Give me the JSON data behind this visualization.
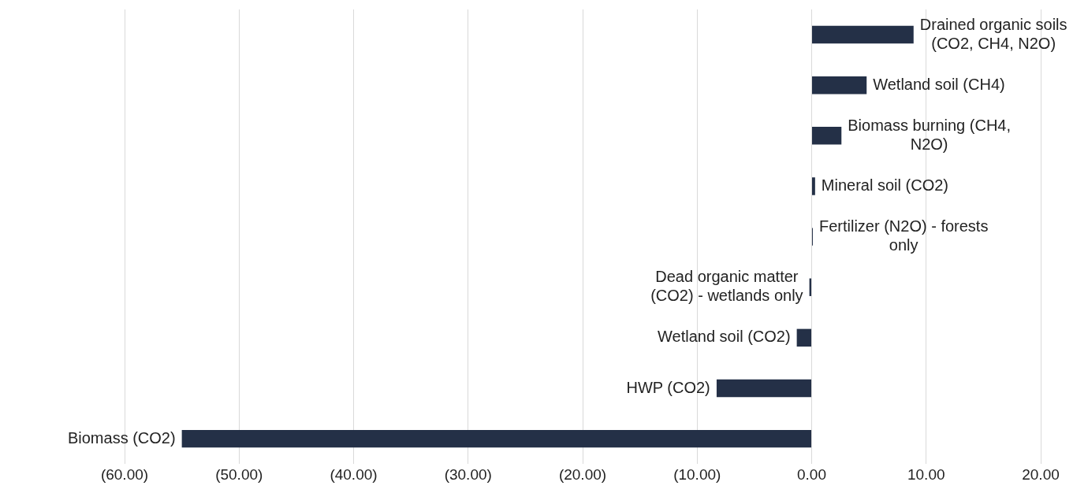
{
  "chart_data": {
    "type": "bar",
    "orientation": "horizontal",
    "categories": [
      "Drained organic soils (CO2, CH4, N2O)",
      "Wetland soil (CH4)",
      "Biomass burning (CH4, N2O)",
      "Mineral soil (CO2)",
      "Fertilizer (N2O) - forests only",
      "Dead organic matter (CO2) - wetlands only",
      "Wetland soil (CO2)",
      "HWP (CO2)",
      "Biomass (CO2)"
    ],
    "values": [
      8.9,
      4.8,
      2.6,
      0.3,
      0.1,
      -0.2,
      -1.3,
      -8.3,
      -55.0
    ],
    "color": "#243047",
    "xlim": [
      -60,
      20
    ],
    "xticks": [
      {
        "value": -60,
        "label": "(60.00)"
      },
      {
        "value": -50,
        "label": "(50.00)"
      },
      {
        "value": -40,
        "label": "(40.00)"
      },
      {
        "value": -30,
        "label": "(30.00)"
      },
      {
        "value": -20,
        "label": "(20.00)"
      },
      {
        "value": -10,
        "label": "(10.00)"
      },
      {
        "value": 0,
        "label": "0.00"
      },
      {
        "value": 10,
        "label": "10.00"
      },
      {
        "value": 20,
        "label": "20.00"
      }
    ],
    "grid": "x",
    "tick_labels": "x"
  }
}
